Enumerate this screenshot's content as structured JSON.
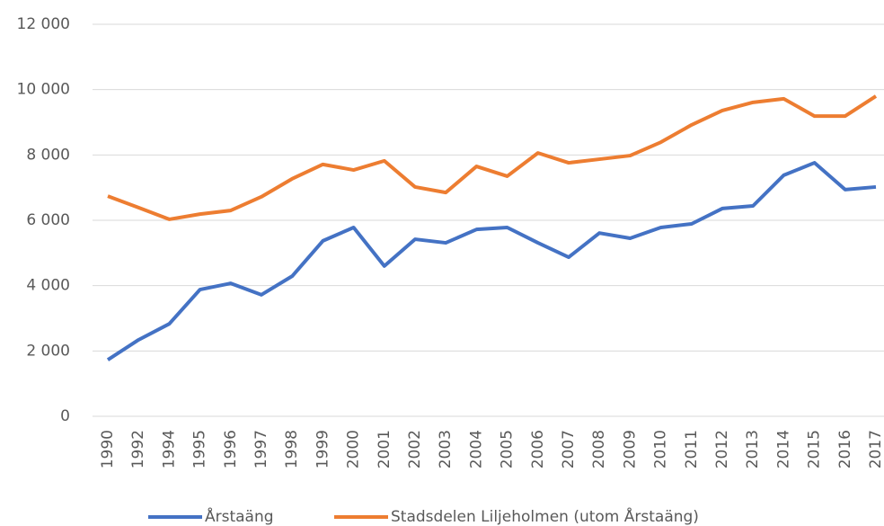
{
  "chart_data": {
    "type": "line",
    "categories": [
      "1990",
      "1992",
      "1994",
      "1995",
      "1996",
      "1997",
      "1998",
      "1999",
      "2000",
      "2001",
      "2002",
      "2003",
      "2004",
      "2005",
      "2006",
      "2007",
      "2008",
      "2009",
      "2010",
      "2011",
      "2012",
      "2013",
      "2014",
      "2015",
      "2016",
      "2017"
    ],
    "series": [
      {
        "name": "Årstaäng",
        "color": "#4472c4",
        "values": [
          1730,
          2340,
          2830,
          3880,
          4070,
          3720,
          4290,
          5370,
          5780,
          4600,
          5420,
          5310,
          5720,
          5780,
          5310,
          4870,
          5610,
          5450,
          5780,
          5890,
          6360,
          6440,
          7380,
          7760,
          6940,
          7020
        ]
      },
      {
        "name": "Stadsdelen Liljeholmen (utom Årstaäng)",
        "color": "#ed7d31",
        "values": [
          6740,
          6390,
          6030,
          6190,
          6300,
          6720,
          7270,
          7710,
          7540,
          7820,
          7020,
          6850,
          7650,
          7350,
          8060,
          7760,
          7870,
          7980,
          8390,
          8920,
          9360,
          9610,
          9720,
          9190,
          9190,
          9800
        ]
      }
    ],
    "ylim": [
      0,
      12000
    ],
    "yticks": [
      0,
      {
        "value": 2000,
        "label": "2 000"
      },
      {
        "value": 4000,
        "label": "4 000"
      },
      {
        "value": 6000,
        "label": "6 000"
      },
      {
        "value": 8000,
        "label": "8 000"
      },
      {
        "value": 10000,
        "label": "10 000"
      },
      {
        "value": 12000,
        "label": "12 000"
      }
    ],
    "grid": true,
    "legend": "bottom"
  }
}
